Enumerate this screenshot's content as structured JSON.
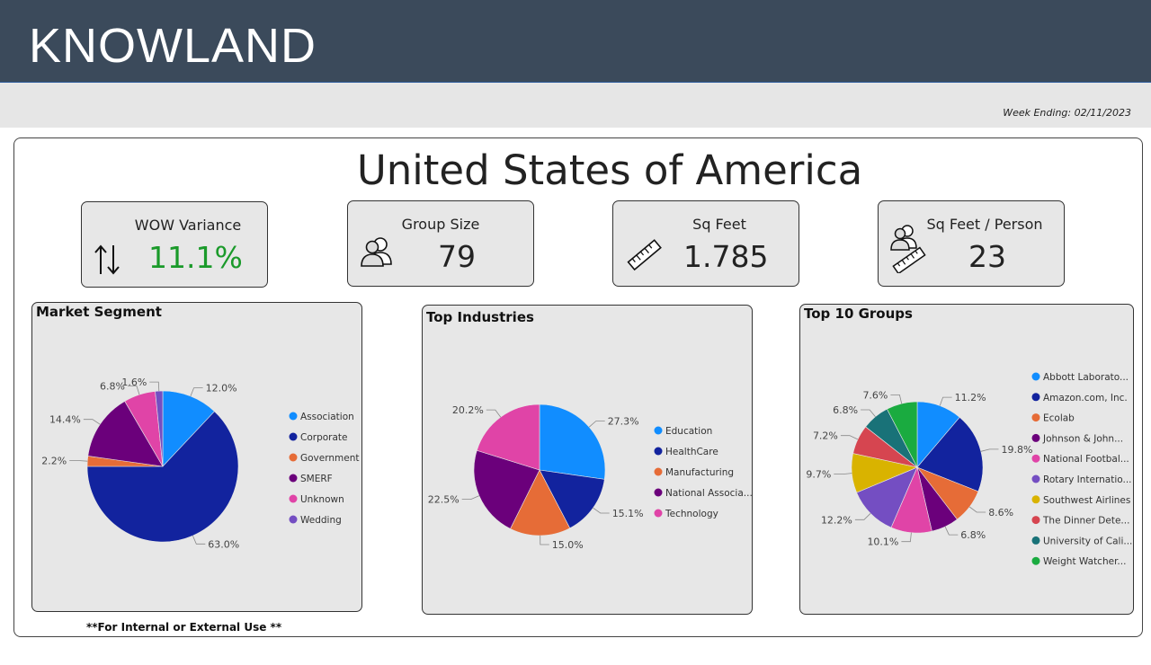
{
  "header": {
    "brand": "KNOWLAND"
  },
  "week_ending": "Week Ending: 02/11/2023",
  "country": "United States of America",
  "kpis": [
    {
      "label": "WOW Variance",
      "value": "11.1%",
      "icon": "up-down-arrows-icon",
      "value_color": "#1a9a2a"
    },
    {
      "label": "Group Size",
      "value": "79",
      "icon": "people-icon",
      "value_color": "#222222"
    },
    {
      "label": "Sq Feet",
      "value": "1.785",
      "icon": "ruler-icon",
      "value_color": "#222222"
    },
    {
      "label": "Sq Feet / Person",
      "value": "23",
      "icon": "people-ruler-icon",
      "value_color": "#222222"
    }
  ],
  "footer_note": "**For Internal or External Use **",
  "chart_data": [
    {
      "type": "pie",
      "title": "Market Segment",
      "categories": [
        "Association",
        "Corporate",
        "Government",
        "SMERF",
        "Unknown",
        "Wedding"
      ],
      "values": [
        12.0,
        63.0,
        2.2,
        14.4,
        6.8,
        1.6
      ],
      "labels": [
        "12.0%",
        "63.0%",
        "2.2%",
        "14.4%",
        "6.8%",
        "1.6%"
      ],
      "colors": [
        "#118dff",
        "#12239e",
        "#e66c37",
        "#6b007b",
        "#e044a7",
        "#744ec2"
      ],
      "legend": "right"
    },
    {
      "type": "pie",
      "title": "Top Industries",
      "categories": [
        "Education",
        "HealthCare",
        "Manufacturing",
        "National Associa...",
        "Technology"
      ],
      "values": [
        27.3,
        15.1,
        15.0,
        22.5,
        20.2
      ],
      "labels": [
        "27.3%",
        "15.1%",
        "15.0%",
        "22.5%",
        "20.2%"
      ],
      "colors": [
        "#118dff",
        "#12239e",
        "#e66c37",
        "#6b007b",
        "#e044a7"
      ],
      "legend": "right"
    },
    {
      "type": "pie",
      "title": "Top 10 Groups",
      "categories": [
        "Abbott Laborato...",
        "Amazon.com, Inc.",
        "Ecolab",
        "Johnson & John...",
        "National Footbal...",
        "Rotary Internatio...",
        "Southwest Airlines",
        "The Dinner Dete...",
        "University of Cali...",
        "Weight Watcher..."
      ],
      "values": [
        11.2,
        19.8,
        8.6,
        6.8,
        10.1,
        12.2,
        9.7,
        7.2,
        6.8,
        7.6
      ],
      "labels": [
        "11.2%",
        "19.8%",
        "8.6%",
        "6.8%",
        "10.1%",
        "12.2%",
        "9.7%",
        "7.2%",
        "6.8%",
        "7.6%"
      ],
      "colors": [
        "#118dff",
        "#12239e",
        "#e66c37",
        "#6b007b",
        "#e044a7",
        "#744ec2",
        "#d9b300",
        "#d64550",
        "#197278",
        "#1aab40"
      ],
      "legend": "right"
    }
  ]
}
